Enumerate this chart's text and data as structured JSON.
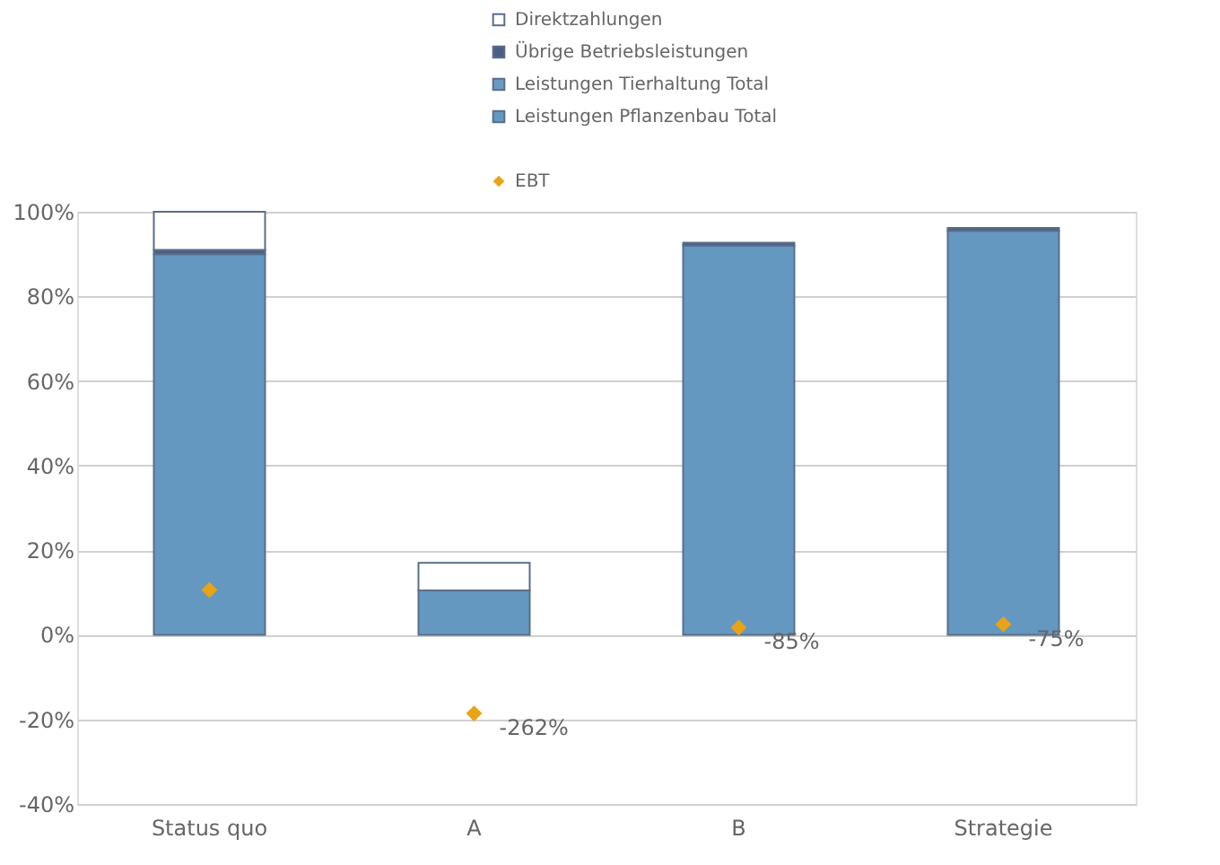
{
  "chart_data": {
    "type": "bar",
    "stacked": true,
    "categories": [
      "Status quo",
      "A",
      "B",
      "Strategie"
    ],
    "series": [
      {
        "name": "Leistungen Pflanzenbau Total",
        "color": "#6598c0",
        "values": [
          90,
          10.5,
          92,
          95.5
        ]
      },
      {
        "name": "Leistungen Tierhaltung Total",
        "color": "#6a9ac4",
        "values": [
          null,
          null,
          null,
          null
        ]
      },
      {
        "name": "Übrige Betriebsleistungen",
        "color": "#4a5f86",
        "values": [
          1,
          null,
          0.7,
          0.7
        ]
      },
      {
        "name": "Direktzahlungen",
        "color": "#ffffff",
        "values": [
          9,
          6.5,
          null,
          null
        ]
      },
      {
        "name": "EBT",
        "type": "scatter",
        "marker": "diamond",
        "color": "#e8a317",
        "values": [
          10.6,
          -18.6,
          1.7,
          2.5
        ]
      }
    ],
    "annotations": [
      {
        "text": "-262%",
        "x": "A",
        "y": -18.6
      },
      {
        "text": "-85%",
        "x": "B",
        "y": 1.7
      },
      {
        "text": "-75%",
        "x": "Strategie",
        "y": 2.5
      }
    ],
    "ylim": [
      -40,
      100
    ],
    "yticks": [
      {
        "value": -40,
        "label": "-40%"
      },
      {
        "value": -20,
        "label": "-20%"
      },
      {
        "value": 0,
        "label": "0%"
      },
      {
        "value": 20,
        "label": "20%"
      },
      {
        "value": 40,
        "label": "40%"
      },
      {
        "value": 60,
        "label": "60%"
      },
      {
        "value": 80,
        "label": "80%"
      },
      {
        "value": 100,
        "label": "100%"
      }
    ],
    "grid": "y",
    "legend": "top"
  }
}
